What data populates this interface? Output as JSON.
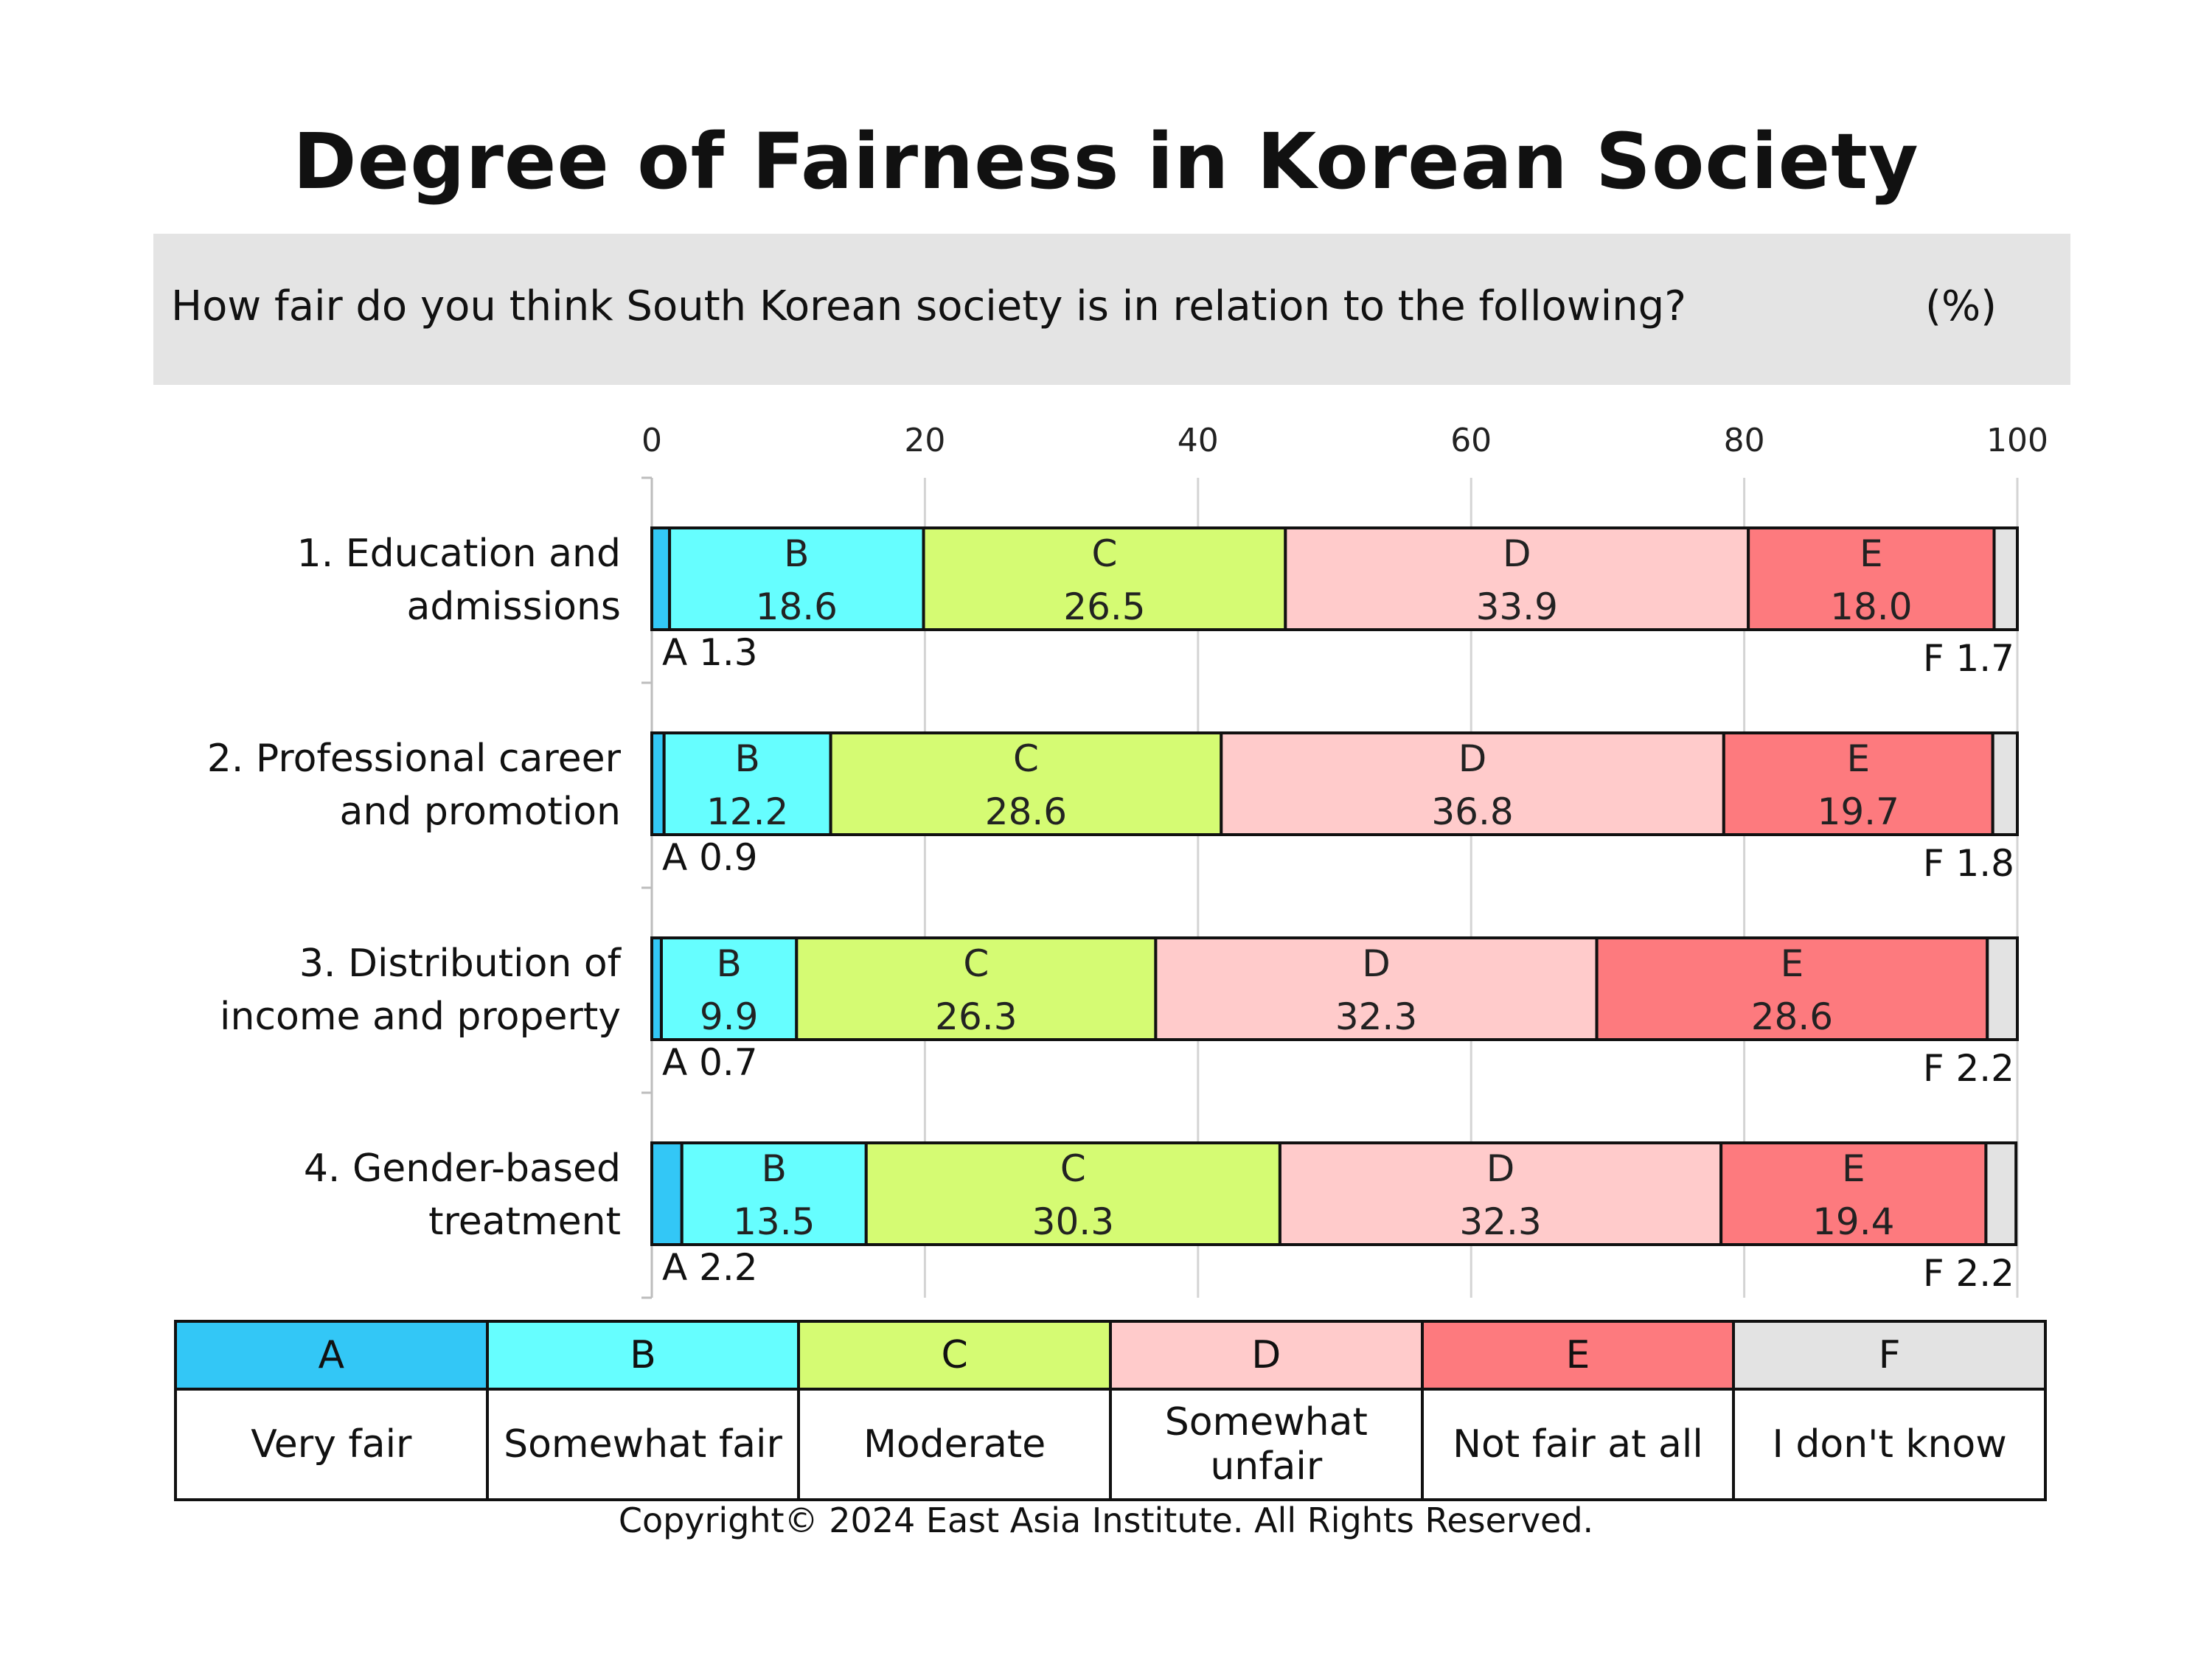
{
  "title": "Degree of Fairness in Korean Society",
  "question": "How fair do you think South Korean society is in relation to the following?",
  "unit": "(%)",
  "copyright": "Copyright© 2024 East Asia Institute. All Rights Reserved.",
  "chart_data": {
    "type": "bar",
    "orientation": "horizontal-stacked",
    "xlim": [
      0,
      100
    ],
    "xticks": [
      "0",
      "20",
      "40",
      "60",
      "80",
      "100"
    ],
    "grid": true,
    "categories": [
      [
        "1. Education and",
        "admissions"
      ],
      [
        "2. Professional career",
        "and promotion"
      ],
      [
        "3. Distribution of",
        "income and property"
      ],
      [
        "4. Gender-based",
        "treatment"
      ]
    ],
    "series": [
      {
        "code": "A",
        "name": "Very fair",
        "color": "#33c7f6",
        "values": [
          1.3,
          0.9,
          0.7,
          2.2
        ]
      },
      {
        "code": "B",
        "name": "Somewhat fair",
        "color": "#66feff",
        "values": [
          18.6,
          12.2,
          9.9,
          13.5
        ]
      },
      {
        "code": "C",
        "name": "Moderate",
        "color": "#d5fb73",
        "values": [
          26.5,
          28.6,
          26.3,
          30.3
        ]
      },
      {
        "code": "D",
        "name": "Somewhat unfair",
        "color": "#ffcbcb",
        "values": [
          33.9,
          36.8,
          32.3,
          32.3
        ]
      },
      {
        "code": "E",
        "name": "Not fair at all",
        "color": "#fd7a7e",
        "values": [
          18.0,
          19.7,
          28.6,
          19.4
        ]
      },
      {
        "code": "F",
        "name": "I don't know",
        "color": "#e3e3e3",
        "values": [
          1.7,
          1.8,
          2.2,
          2.2
        ]
      }
    ],
    "value_labels": [
      {
        "A": "A 1.3",
        "B": "18.6",
        "C": "26.5",
        "D": "33.9",
        "E": "18.0",
        "F": "F 1.7"
      },
      {
        "A": "A 0.9",
        "B": "12.2",
        "C": "28.6",
        "D": "36.8",
        "E": "19.7",
        "F": "F 1.8"
      },
      {
        "A": "A 0.7",
        "B": "9.9",
        "C": "26.3",
        "D": "32.3",
        "E": "28.6",
        "F": "F 2.2"
      },
      {
        "A": "A 2.2",
        "B": "13.5",
        "C": "30.3",
        "D": "32.3",
        "E": "19.4",
        "F": "F 2.2"
      }
    ]
  },
  "legend": {
    "codes": [
      "A",
      "B",
      "C",
      "D",
      "E",
      "F"
    ],
    "labels": [
      "Very fair",
      "Somewhat fair",
      "Moderate",
      "Somewhat unfair",
      "Not fair at all",
      "I don't know"
    ],
    "colors": [
      "#33c7f6",
      "#66feff",
      "#d5fb73",
      "#ffcbcb",
      "#fd7a7e",
      "#e3e3e3"
    ]
  }
}
